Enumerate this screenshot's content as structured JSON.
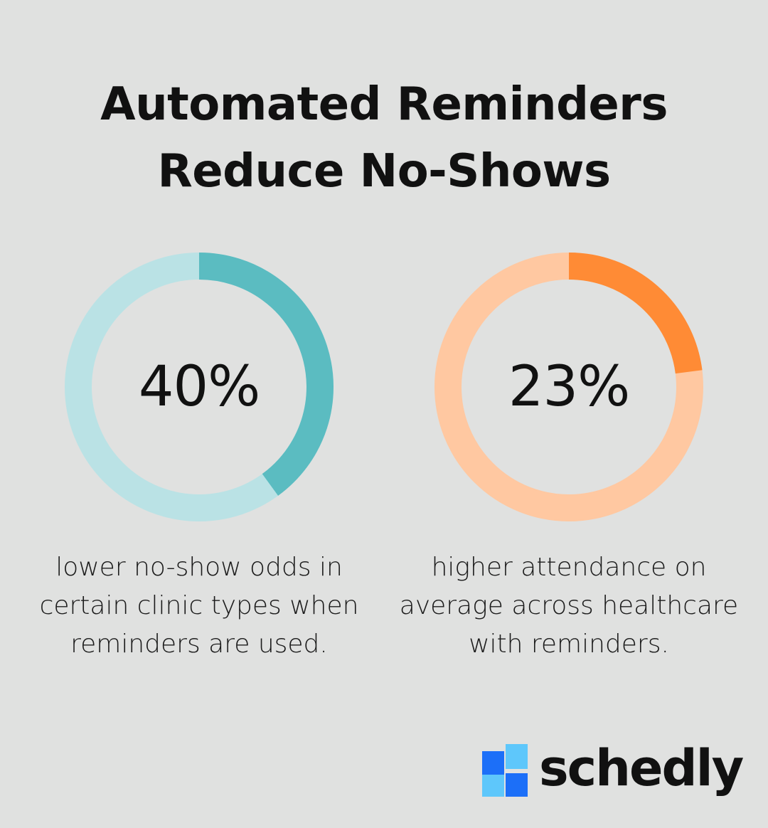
{
  "title": {
    "line1": "Automated Reminders",
    "line2": "Reduce No-Shows"
  },
  "chart_data": [
    {
      "type": "pie",
      "value": 40,
      "label": "40%",
      "caption": [
        "lower no-show odds in",
        "certain clinic types when",
        "reminders are used."
      ],
      "colors": {
        "filled": "#5bbcc1",
        "track": "#bae2e5"
      }
    },
    {
      "type": "pie",
      "value": 23,
      "label": "23%",
      "caption": [
        "higher attendance on",
        "average across healthcare",
        "with reminders."
      ],
      "colors": {
        "filled": "#ff8b35",
        "track": "#ffc8a1"
      }
    }
  ],
  "brand": {
    "name": "schedly",
    "icon": "schedly-logo-icon",
    "colors": {
      "dark": "#1c6ff8",
      "light": "#5ec7fb"
    }
  }
}
